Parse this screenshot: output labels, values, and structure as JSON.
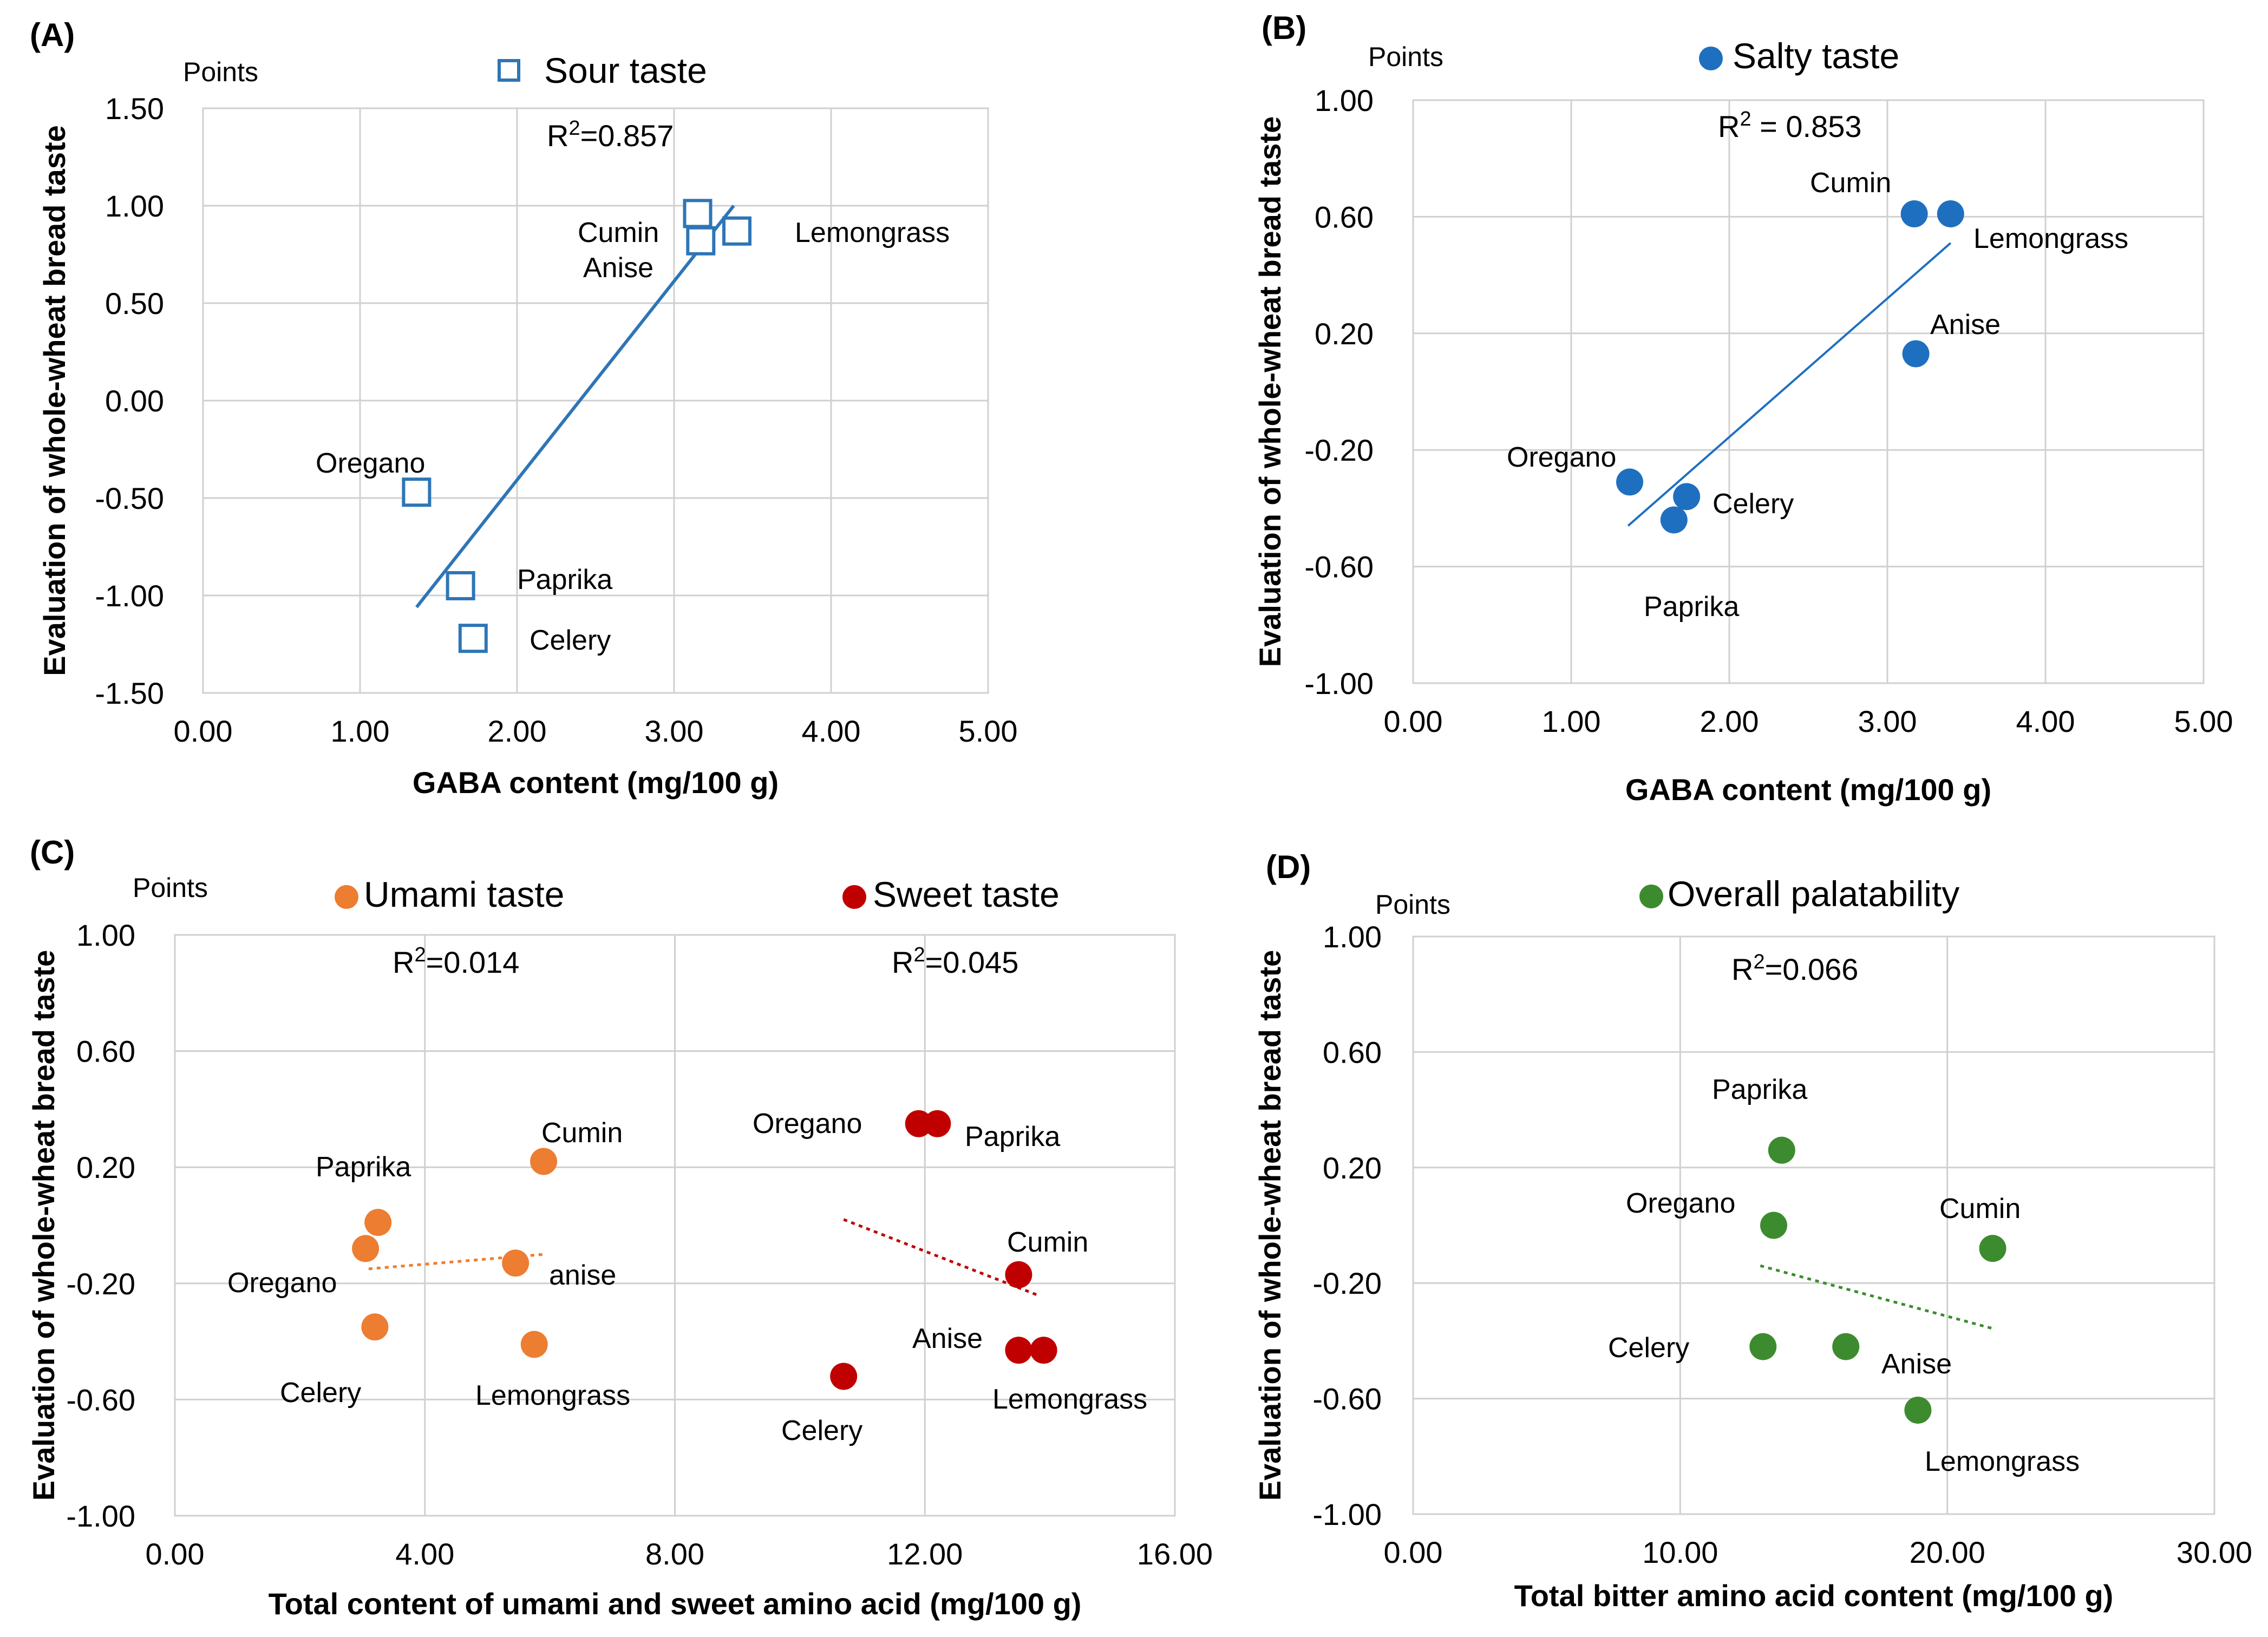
{
  "chart_data": [
    {
      "panel": "(A)",
      "type": "scatter",
      "points_label": "Points",
      "xlabel": "GABA content  (mg/100 g)",
      "ylabel": "Evaluation of whole-wheat bread taste",
      "xlim": [
        0,
        5
      ],
      "ylim": [
        -1.5,
        1.5
      ],
      "xticks": [
        "0.00",
        "1.00",
        "2.00",
        "3.00",
        "4.00",
        "5.00"
      ],
      "yticks": [
        "1.50",
        "1.00",
        "0.50",
        "0.00",
        "-0.50",
        "-1.00",
        "-1.50"
      ],
      "grid": true,
      "series": [
        {
          "name": "Sour taste",
          "marker": "open-square",
          "color": "#2e75b6",
          "r2": "R²=0.857",
          "trend": {
            "style": "solid",
            "x": [
              1.36,
              3.38
            ],
            "y": [
              -1.06,
              1.0
            ]
          },
          "points": [
            {
              "label": "Cumin",
              "x": 3.15,
              "y": 0.96
            },
            {
              "label": "Anise",
              "x": 3.17,
              "y": 0.82
            },
            {
              "label": "Lemongrass",
              "x": 3.4,
              "y": 0.87
            },
            {
              "label": "Oregano",
              "x": 1.36,
              "y": -0.47
            },
            {
              "label": "Paprika",
              "x": 1.64,
              "y": -0.95
            },
            {
              "label": "Celery",
              "x": 1.72,
              "y": -1.22
            }
          ]
        }
      ]
    },
    {
      "panel": "(B)",
      "type": "scatter",
      "points_label": "Points",
      "xlabel": "GABA content  (mg/100 g)",
      "ylabel": "Evaluation of whole-wheat bread taste",
      "xlim": [
        0,
        5
      ],
      "ylim": [
        -1.0,
        1.0
      ],
      "xticks": [
        "0.00",
        "1.00",
        "2.00",
        "3.00",
        "4.00",
        "5.00"
      ],
      "yticks": [
        "1.00",
        "0.60",
        "0.20",
        "-0.20",
        "-0.60",
        "-1.00"
      ],
      "grid": true,
      "series": [
        {
          "name": "Salty taste",
          "marker": "filled-circle",
          "color": "#1f6fc0",
          "r2": "R² = 0.853",
          "trend": {
            "style": "solid",
            "x": [
              1.36,
              3.4
            ],
            "y": [
              -0.46,
              0.51
            ]
          },
          "points": [
            {
              "label": "Cumin",
              "x": 3.17,
              "y": 0.61
            },
            {
              "label": "Lemongrass",
              "x": 3.4,
              "y": 0.61
            },
            {
              "label": "Anise",
              "x": 3.18,
              "y": 0.13
            },
            {
              "label": "Oregano",
              "x": 1.37,
              "y": -0.31
            },
            {
              "label": "Celery",
              "x": 1.73,
              "y": -0.36
            },
            {
              "label": "Paprika",
              "x": 1.65,
              "y": -0.44
            }
          ]
        }
      ]
    },
    {
      "panel": "(C)",
      "type": "scatter",
      "points_label": "Points",
      "xlabel": "Total content of umami and sweet amino acid (mg/100 g)",
      "ylabel": "Evaluation of  whole-wheat bread taste",
      "xlim": [
        0,
        16
      ],
      "ylim": [
        -1.0,
        1.0
      ],
      "xticks": [
        "0.00",
        "4.00",
        "8.00",
        "12.00",
        "16.00"
      ],
      "yticks": [
        "1.00",
        "0.60",
        "0.20",
        "-0.20",
        "-0.60",
        "-1.00"
      ],
      "grid": true,
      "series": [
        {
          "name": "Umami taste",
          "marker": "filled-circle",
          "color": "#ed7d31",
          "r2": "R²=0.014",
          "trend": {
            "style": "dotted",
            "x": [
              3.1,
              5.9
            ],
            "y": [
              -0.15,
              -0.1
            ]
          },
          "points": [
            {
              "label": "Cumin",
              "x": 5.9,
              "y": 0.22
            },
            {
              "label": "Paprika",
              "x": 3.25,
              "y": 0.01
            },
            {
              "label": "Oregano",
              "x": 3.05,
              "y": -0.08
            },
            {
              "label": "anise",
              "x": 5.45,
              "y": -0.13
            },
            {
              "label": "Celery",
              "x": 3.2,
              "y": -0.35
            },
            {
              "label": "Lemongrass",
              "x": 5.75,
              "y": -0.41
            }
          ]
        },
        {
          "name": "Sweet taste",
          "marker": "filled-circle",
          "color": "#c00000",
          "r2": "R²=0.045",
          "trend": {
            "style": "dotted",
            "x": [
              10.7,
              13.8
            ],
            "y": [
              0.02,
              -0.24
            ]
          },
          "points": [
            {
              "label": "Oregano",
              "x": 11.9,
              "y": 0.35
            },
            {
              "label": "Paprika",
              "x": 12.2,
              "y": 0.35
            },
            {
              "label": "Cumin",
              "x": 13.5,
              "y": -0.17
            },
            {
              "label": "Anise",
              "x": 13.5,
              "y": -0.43
            },
            {
              "label": "Lemongrass",
              "x": 13.9,
              "y": -0.43
            },
            {
              "label": "Celery",
              "x": 10.7,
              "y": -0.52
            }
          ]
        }
      ]
    },
    {
      "panel": "(D)",
      "type": "scatter",
      "points_label": "Points",
      "xlabel": "Total bitter amino acid content (mg/100 g)",
      "ylabel": "Evaluation of whole-wheat bread taste",
      "xlim": [
        0,
        30
      ],
      "ylim": [
        -1.0,
        1.0
      ],
      "xticks": [
        "0.00",
        "10.00",
        "20.00",
        "30.00"
      ],
      "yticks": [
        "1.00",
        "0.60",
        "0.20",
        "-0.20",
        "-0.60",
        "-1.00"
      ],
      "grid": true,
      "series": [
        {
          "name": "Overall palatability",
          "marker": "filled-circle",
          "color": "#3d8b2f",
          "r2": "R²=0.066",
          "trend": {
            "style": "dotted",
            "x": [
              13.0,
              21.8
            ],
            "y": [
              -0.14,
              -0.36
            ]
          },
          "points": [
            {
              "label": "Paprika",
              "x": 13.8,
              "y": 0.26
            },
            {
              "label": "Oregano",
              "x": 13.5,
              "y": 0.0
            },
            {
              "label": "Cumin",
              "x": 21.7,
              "y": -0.08
            },
            {
              "label": "Celery",
              "x": 13.1,
              "y": -0.42
            },
            {
              "label": "Anise",
              "x": 16.2,
              "y": -0.42
            },
            {
              "label": "Lemongrass",
              "x": 18.9,
              "y": -0.64
            }
          ]
        }
      ]
    }
  ]
}
